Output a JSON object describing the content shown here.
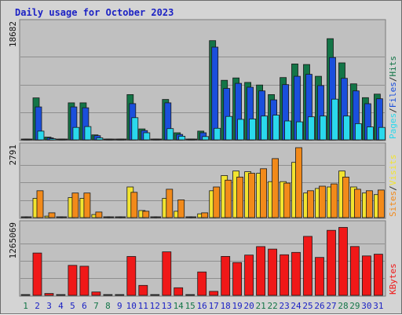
{
  "title": "Daily usage for October 2023",
  "chart_data": {
    "type": "bar",
    "title": "Daily usage for October 2023",
    "categories": [
      "1",
      "2",
      "3",
      "4",
      "5",
      "6",
      "7",
      "8",
      "9",
      "10",
      "11",
      "12",
      "13",
      "14",
      "15",
      "16",
      "17",
      "18",
      "19",
      "20",
      "21",
      "22",
      "23",
      "24",
      "25",
      "26",
      "27",
      "28",
      "29",
      "30",
      "31"
    ],
    "weekend_days": [
      "1",
      "7",
      "8",
      "14",
      "15",
      "21",
      "22",
      "28",
      "29"
    ],
    "colors": {
      "hits": "#137547",
      "files": "#1a4fdc",
      "pages": "#2ad8ec",
      "visits": "#f2e430",
      "sites": "#f28a1a",
      "kbytes": "#f01818",
      "weekday_label": "#1c22c4",
      "weekend_label": "#137547",
      "plot_bg": "#c0c0c0"
    },
    "panels": [
      {
        "name": "hits-files-pages",
        "max_label": "18682",
        "ymax": 18682,
        "legend": [
          {
            "text": "Pages",
            "color": "#2ad8ec"
          },
          {
            "text": "/",
            "color": "#2b2b2b"
          },
          {
            "text": "Files",
            "color": "#1a4fdc"
          },
          {
            "text": "/",
            "color": "#2b2b2b"
          },
          {
            "text": "Hits",
            "color": "#137547"
          }
        ],
        "series": [
          {
            "name": "Hits",
            "color": "#137547",
            "values": [
              0,
              7070,
              470,
              0,
              6240,
              6240,
              840,
              0,
              0,
              7630,
              1840,
              0,
              6810,
              1190,
              0,
              1470,
              16740,
              10040,
              10440,
              9690,
              9250,
              7630,
              10510,
              12800,
              12710,
              10720,
              17070,
              12990,
              9450,
              7110,
              7710
            ]
          },
          {
            "name": "Files",
            "color": "#1a4fdc",
            "values": [
              0,
              5550,
              330,
              0,
              5550,
              5410,
              700,
              0,
              0,
              6110,
              1560,
              0,
              6240,
              910,
              0,
              1190,
              15630,
              8660,
              9530,
              8880,
              8250,
              6740,
              9320,
              10720,
              11050,
              9150,
              13890,
              10380,
              8250,
              6100,
              6930
            ]
          },
          {
            "name": "Pages",
            "color": "#2ad8ec",
            "values": [
              0,
              1470,
              190,
              0,
              2100,
              2240,
              330,
              0,
              0,
              3740,
              1190,
              0,
              1890,
              610,
              0,
              560,
              1950,
              3950,
              3460,
              3530,
              4020,
              4160,
              3180,
              3040,
              3880,
              4020,
              6860,
              4020,
              2730,
              2170,
              2100
            ]
          }
        ]
      },
      {
        "name": "visits-sites",
        "max_label": "2791",
        "ymax": 2791,
        "legend": [
          {
            "text": "Sites",
            "color": "#f28a1a"
          },
          {
            "text": "/",
            "color": "#2b2b2b"
          },
          {
            "text": "Visits",
            "color": "#f2e430"
          }
        ],
        "series": [
          {
            "name": "Visits",
            "color": "#f2e430",
            "values": [
              0,
              760,
              60,
              0,
              790,
              760,
              120,
              0,
              0,
              1210,
              280,
              0,
              760,
              250,
              0,
              150,
              1060,
              1660,
              1840,
              1810,
              1750,
              1420,
              1420,
              2180,
              970,
              1150,
              1210,
              1840,
              1210,
              970,
              910
            ]
          },
          {
            "name": "Sites",
            "color": "#f28a1a",
            "values": [
              0,
              1060,
              190,
              0,
              970,
              970,
              220,
              0,
              0,
              1000,
              250,
              0,
              1120,
              700,
              0,
              190,
              1210,
              1480,
              1600,
              1750,
              1930,
              2330,
              1360,
              2760,
              1060,
              1240,
              1330,
              1600,
              1120,
              1060,
              1090
            ]
          }
        ]
      },
      {
        "name": "kbytes",
        "max_label": "1265069",
        "ymax": 1265069,
        "legend": [
          {
            "text": "KBytes",
            "color": "#f01818"
          }
        ],
        "series": [
          {
            "name": "KBytes",
            "color": "#f01818",
            "values": [
              0,
              774700,
              34500,
              0,
              549000,
              534000,
              62000,
              0,
              0,
              712000,
              183000,
              0,
              796000,
              139000,
              0,
              428000,
              73000,
              713000,
              601000,
              738000,
              893000,
              847000,
              743000,
              786000,
              1080000,
              695000,
              1190000,
              1243000,
              894000,
              721000,
              753000
            ]
          }
        ]
      }
    ]
  }
}
